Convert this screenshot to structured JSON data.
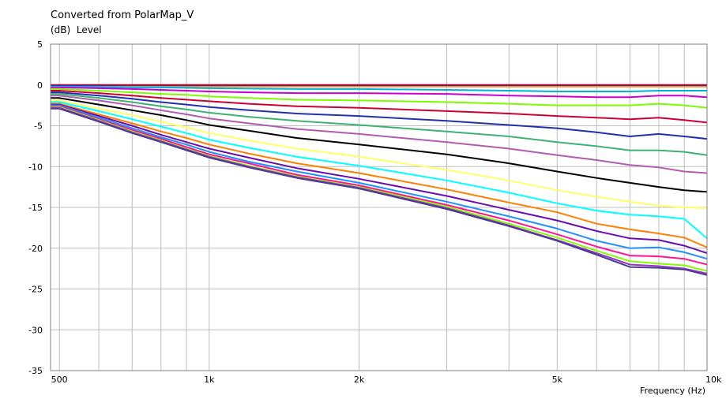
{
  "chart_data": {
    "type": "line",
    "title": "Converted from PolarMap_V",
    "ylabel_unit": "(dB)",
    "ylabel": "Level",
    "xlabel": "Frequency (Hz)",
    "xscale": "log",
    "xlim": [
      480,
      10000
    ],
    "ylim": [
      -35,
      5
    ],
    "grid": true,
    "ytick_labels": [
      "5",
      "0",
      "-5",
      "-10",
      "-15",
      "-20",
      "-25",
      "-30",
      "-35"
    ],
    "ytick_values": [
      5,
      0,
      -5,
      -10,
      -15,
      -20,
      -25,
      -30,
      -35
    ],
    "xtick_labels": [
      "500",
      "1k",
      "2k",
      "5k",
      "10k"
    ],
    "xtick_values": [
      500,
      1000,
      2000,
      5000,
      10000
    ],
    "x": [
      480,
      500,
      600,
      700,
      800,
      900,
      1000,
      1200,
      1500,
      2000,
      3000,
      4000,
      5000,
      6000,
      7000,
      8000,
      9000,
      10000
    ],
    "series": [
      {
        "color": "#ff0000",
        "values": [
          0,
          0,
          0,
          0,
          0,
          0,
          0,
          0,
          0,
          0,
          0,
          0,
          0,
          0,
          0,
          0,
          0,
          0
        ]
      },
      {
        "color": "#0000ff",
        "values": [
          -0.1,
          -0.1,
          -0.1,
          -0.1,
          -0.1,
          -0.1,
          -0.1,
          -0.1,
          -0.1,
          -0.1,
          -0.1,
          -0.1,
          -0.1,
          -0.1,
          -0.1,
          -0.1,
          -0.1,
          -0.1
        ]
      },
      {
        "color": "#ff8c00",
        "values": [
          -0.2,
          -0.2,
          -0.2,
          -0.2,
          -0.2,
          -0.2,
          -0.2,
          -0.2,
          -0.2,
          -0.2,
          -0.2,
          -0.2,
          -0.2,
          -0.2,
          -0.2,
          -0.2,
          -0.2,
          -0.2
        ]
      },
      {
        "color": "#00b4d8",
        "values": [
          -0.2,
          -0.2,
          -0.25,
          -0.3,
          -0.3,
          -0.35,
          -0.4,
          -0.45,
          -0.5,
          -0.5,
          -0.6,
          -0.7,
          -0.8,
          -0.8,
          -0.8,
          -0.7,
          -0.7,
          -0.7
        ]
      },
      {
        "color": "#cc00cc",
        "values": [
          -0.3,
          -0.3,
          -0.4,
          -0.5,
          -0.6,
          -0.7,
          -0.8,
          -0.9,
          -1.0,
          -1.0,
          -1.1,
          -1.3,
          -1.4,
          -1.5,
          -1.5,
          -1.3,
          -1.3,
          -1.5
        ]
      },
      {
        "color": "#7cfc00",
        "values": [
          -0.5,
          -0.5,
          -0.7,
          -0.9,
          -1.1,
          -1.2,
          -1.4,
          -1.6,
          -1.8,
          -1.9,
          -2.1,
          -2.3,
          -2.5,
          -2.5,
          -2.5,
          -2.3,
          -2.5,
          -2.8
        ]
      },
      {
        "color": "#cc0033",
        "values": [
          -0.7,
          -0.7,
          -1.0,
          -1.3,
          -1.6,
          -1.8,
          -2.0,
          -2.3,
          -2.6,
          -2.8,
          -3.2,
          -3.5,
          -3.8,
          -4.0,
          -4.2,
          -4.0,
          -4.3,
          -4.6
        ]
      },
      {
        "color": "#2030b0",
        "values": [
          -0.9,
          -0.9,
          -1.3,
          -1.7,
          -2.1,
          -2.4,
          -2.7,
          -3.1,
          -3.5,
          -3.8,
          -4.4,
          -4.9,
          -5.3,
          -5.8,
          -6.3,
          -6.0,
          -6.3,
          -6.6
        ]
      },
      {
        "color": "#3cb371",
        "values": [
          -1.1,
          -1.1,
          -1.6,
          -2.1,
          -2.6,
          -3.0,
          -3.4,
          -3.9,
          -4.4,
          -4.9,
          -5.7,
          -6.3,
          -7.0,
          -7.5,
          -8.0,
          -8.0,
          -8.2,
          -8.6
        ]
      },
      {
        "color": "#b05cb0",
        "values": [
          -1.3,
          -1.3,
          -1.9,
          -2.5,
          -3.1,
          -3.6,
          -4.1,
          -4.7,
          -5.4,
          -6.0,
          -7.0,
          -7.8,
          -8.6,
          -9.2,
          -9.8,
          -10.1,
          -10.6,
          -10.8
        ]
      },
      {
        "color": "#000000",
        "values": [
          -1.6,
          -1.6,
          -2.4,
          -3.1,
          -3.7,
          -4.3,
          -4.9,
          -5.6,
          -6.5,
          -7.3,
          -8.5,
          -9.6,
          -10.6,
          -11.4,
          -12.0,
          -12.5,
          -12.9,
          -13.1
        ]
      },
      {
        "color": "#ffff66",
        "values": [
          -1.9,
          -1.9,
          -2.9,
          -3.7,
          -4.5,
          -5.2,
          -5.9,
          -6.8,
          -7.8,
          -8.8,
          -10.4,
          -11.7,
          -12.9,
          -13.7,
          -14.3,
          -14.8,
          -15.0,
          -15.1
        ]
      },
      {
        "color": "#00ffff",
        "values": [
          -2.1,
          -2.1,
          -3.2,
          -4.2,
          -5.1,
          -5.9,
          -6.7,
          -7.7,
          -8.8,
          -9.9,
          -11.7,
          -13.2,
          -14.5,
          -15.4,
          -15.9,
          -16.1,
          -16.4,
          -18.8
        ]
      },
      {
        "color": "#ff7f00",
        "values": [
          -2.3,
          -2.3,
          -3.6,
          -4.7,
          -5.7,
          -6.5,
          -7.3,
          -8.4,
          -9.6,
          -10.8,
          -12.8,
          -14.4,
          -15.6,
          -17.0,
          -17.7,
          -18.2,
          -18.7,
          -19.9
        ]
      },
      {
        "color": "#6a0dad",
        "values": [
          -2.4,
          -2.4,
          -3.8,
          -5.0,
          -6.1,
          -7.0,
          -7.8,
          -8.9,
          -10.2,
          -11.5,
          -13.6,
          -15.3,
          -16.6,
          -17.9,
          -18.8,
          -19.0,
          -19.7,
          -20.6
        ]
      },
      {
        "color": "#1e90ff",
        "values": [
          -2.5,
          -2.5,
          -4.0,
          -5.3,
          -6.4,
          -7.3,
          -8.2,
          -9.4,
          -10.6,
          -12.0,
          -14.3,
          -16.1,
          -17.6,
          -19.1,
          -20.0,
          -19.9,
          -20.5,
          -21.3
        ]
      },
      {
        "color": "#ff1493",
        "values": [
          -2.6,
          -2.6,
          -4.2,
          -5.5,
          -6.6,
          -7.6,
          -8.5,
          -9.6,
          -11.0,
          -12.3,
          -14.7,
          -16.6,
          -18.3,
          -19.8,
          -20.9,
          -21.0,
          -21.3,
          -22.0
        ]
      },
      {
        "color": "#7fff00",
        "values": [
          -2.7,
          -2.7,
          -4.3,
          -5.7,
          -6.8,
          -7.8,
          -8.7,
          -9.9,
          -11.2,
          -12.5,
          -14.9,
          -17.0,
          -18.7,
          -20.3,
          -21.6,
          -21.9,
          -22.1,
          -22.8
        ]
      },
      {
        "color": "#9932cc",
        "values": [
          -2.8,
          -2.8,
          -4.4,
          -5.8,
          -6.9,
          -7.9,
          -8.8,
          -10.0,
          -11.3,
          -12.6,
          -15.1,
          -17.2,
          -19.0,
          -20.6,
          -22.0,
          -22.2,
          -22.5,
          -23.1
        ]
      },
      {
        "color": "#4b3b8f",
        "values": [
          -2.9,
          -2.9,
          -4.5,
          -5.9,
          -7.0,
          -8.0,
          -8.9,
          -10.1,
          -11.4,
          -12.7,
          -15.2,
          -17.3,
          -19.1,
          -20.8,
          -22.3,
          -22.4,
          -22.6,
          -23.3
        ]
      }
    ]
  }
}
